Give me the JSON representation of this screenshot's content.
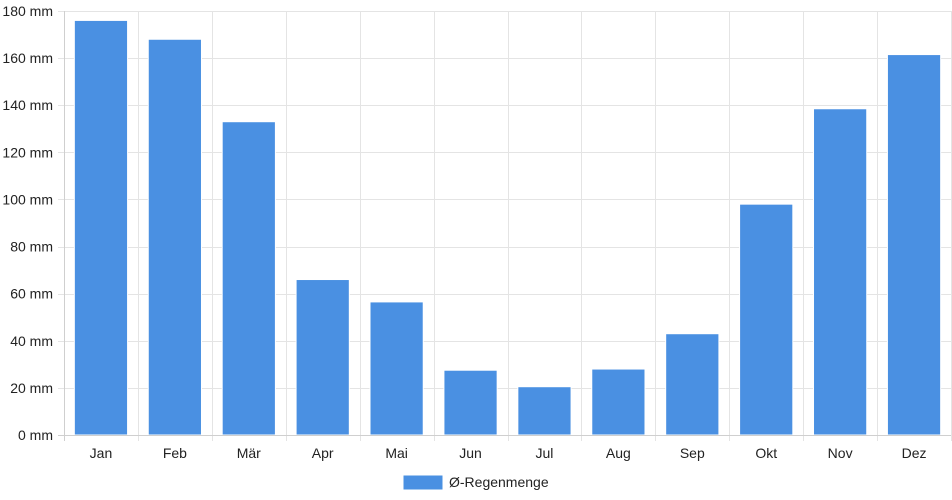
{
  "chart_data": {
    "type": "bar",
    "categories": [
      "Jan",
      "Feb",
      "Mär",
      "Apr",
      "Mai",
      "Jun",
      "Jul",
      "Aug",
      "Sep",
      "Okt",
      "Nov",
      "Dez"
    ],
    "series": [
      {
        "name": "Ø-Regenmenge",
        "values": [
          176,
          168,
          133,
          66,
          56.5,
          27.5,
          20.5,
          28,
          43,
          98,
          138.5,
          161.5
        ],
        "color": "#4a90e2"
      }
    ],
    "y_unit": " mm",
    "ylim": [
      0,
      180
    ],
    "y_ticks": [
      0,
      20,
      40,
      60,
      80,
      100,
      120,
      140,
      160,
      180
    ],
    "grid": true,
    "legend_position": "bottom-center",
    "gridline_color": "#e4e4e4"
  }
}
